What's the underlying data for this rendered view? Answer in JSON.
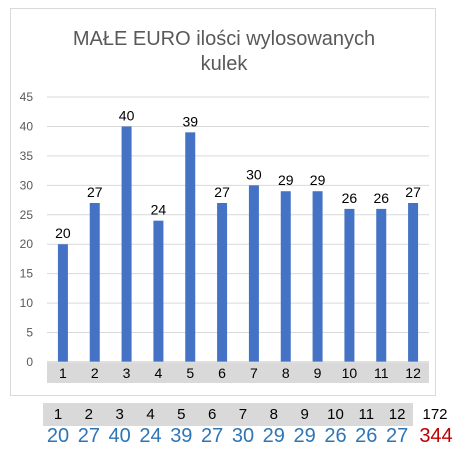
{
  "chart_data": {
    "type": "bar",
    "title": "MAŁE EURO ilości wylosowanych\nkulek",
    "categories": [
      "1",
      "2",
      "3",
      "4",
      "5",
      "6",
      "7",
      "8",
      "9",
      "10",
      "11",
      "12"
    ],
    "values": [
      20,
      27,
      40,
      24,
      39,
      27,
      30,
      29,
      29,
      26,
      26,
      27
    ],
    "ylim": [
      0,
      45
    ],
    "yticks": [
      "0",
      "5",
      "10",
      "15",
      "20",
      "25",
      "30",
      "35",
      "40",
      "45"
    ],
    "grid": true,
    "bar_color": "#4472c4",
    "data_labels": true
  },
  "summary": {
    "categories": [
      "1",
      "2",
      "3",
      "4",
      "5",
      "6",
      "7",
      "8",
      "9",
      "10",
      "11",
      "12"
    ],
    "values": [
      "20",
      "27",
      "40",
      "24",
      "39",
      "27",
      "30",
      "29",
      "29",
      "26",
      "26",
      "27"
    ],
    "category_total": "172",
    "value_total": "344",
    "value_color": "#2e75b6",
    "total_color": "#c00000",
    "header_bg": "#d9d9d9"
  }
}
